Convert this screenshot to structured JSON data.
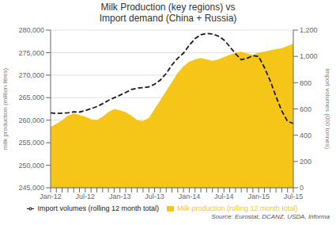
{
  "chart_data": {
    "type": "line",
    "title": "Milk Production (key regions) vs\nImport demand (China + Russia)",
    "categories": [
      "Jan-12",
      null,
      null,
      null,
      null,
      null,
      "Jul-12",
      null,
      null,
      null,
      null,
      null,
      "Jan-13",
      null,
      null,
      null,
      null,
      null,
      "Jul-13",
      null,
      null,
      null,
      null,
      null,
      "Jan-14",
      null,
      null,
      null,
      null,
      null,
      "Jul-14",
      null,
      null,
      null,
      null,
      null,
      "Jan-15",
      null,
      null,
      null,
      null,
      null,
      "Jul-15"
    ],
    "series": [
      {
        "name": "Milk production (rolling 12 month total)",
        "type": "area",
        "color": "#f5c518",
        "values": [
          258500,
          259200,
          260000,
          261000,
          261500,
          261200,
          260800,
          260200,
          260000,
          260800,
          261800,
          262500,
          262200,
          261800,
          261000,
          260000,
          259800,
          260500,
          262500,
          264500,
          266500,
          268500,
          270500,
          272000,
          273000,
          273500,
          273800,
          273500,
          273200,
          273500,
          274000,
          274500,
          275000,
          275200,
          274800,
          274500,
          275000,
          275200,
          275500,
          275800,
          276000,
          276500,
          277000
        ]
      },
      {
        "name": "Import volumes (rolling 12 month total)",
        "type": "line",
        "axis": "y2",
        "color": "#1a1a1a",
        "line_style": "dashed",
        "values": [
          570,
          565,
          568,
          570,
          578,
          576,
          588,
          602,
          618,
          640,
          665,
          685,
          705,
          725,
          748,
          758,
          762,
          768,
          788,
          820,
          870,
          935,
          985,
          1025,
          1085,
          1135,
          1165,
          1175,
          1170,
          1155,
          1125,
          1075,
          1020,
          975,
          985,
          1005,
          1000,
          915,
          815,
          695,
          585,
          505,
          490
        ]
      }
    ],
    "ylabel": "milk production (million litres)",
    "y2label": "import volumes (000 tonnes)",
    "ylim": [
      245000,
      280000
    ],
    "yticks": [
      {
        "value": 245000,
        "label": "245,000"
      },
      {
        "value": 250000,
        "label": "250,000"
      },
      {
        "value": 255000,
        "label": "255,000"
      },
      {
        "value": 260000,
        "label": "260,000"
      },
      {
        "value": 265000,
        "label": "265,000"
      },
      {
        "value": 270000,
        "label": "270,000"
      },
      {
        "value": 275000,
        "label": "275,000"
      },
      {
        "value": 280000,
        "label": "280,000"
      }
    ],
    "y2lim": [
      0,
      1200
    ],
    "y2ticks": [
      0,
      200,
      400,
      600,
      800,
      {
        "value": 1000,
        "label": "1,000"
      },
      {
        "value": 1200,
        "label": "1,200"
      }
    ],
    "grid": true,
    "legend": "bottom",
    "annotations": [
      "Source: Eurostat, DCANZ, USDA, Informa"
    ]
  }
}
